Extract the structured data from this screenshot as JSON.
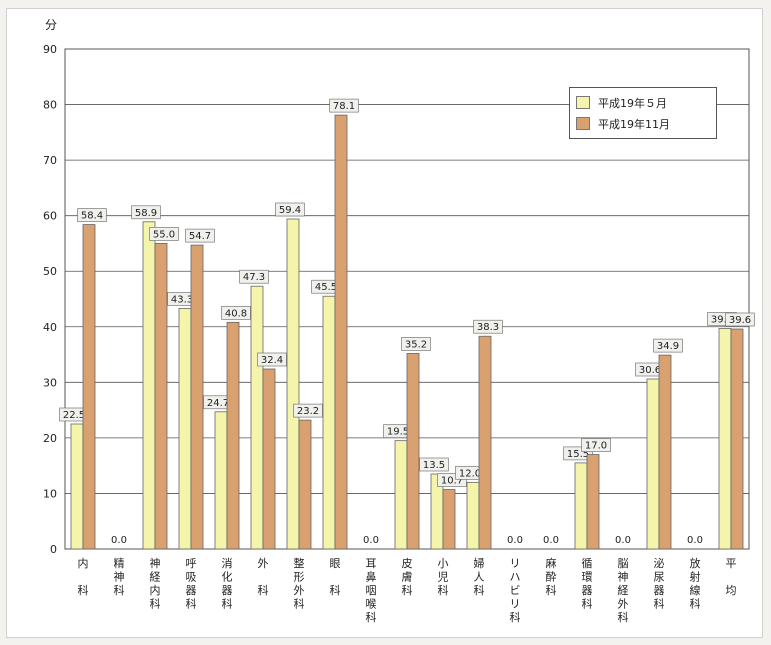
{
  "chart_data": {
    "type": "bar",
    "y_unit": "分",
    "ylim": [
      0,
      90
    ],
    "y_ticks": [
      0,
      10,
      20,
      30,
      40,
      50,
      60,
      70,
      80,
      90
    ],
    "grid": true,
    "legend_position": "top-right",
    "categories": [
      "内　科",
      "精神科",
      "神経内科",
      "呼吸器科",
      "消化器科",
      "外　科",
      "整形外科",
      "眼　科",
      "耳鼻咽喉科",
      "皮膚科",
      "小児科",
      "婦人科",
      "リハビリ科",
      "麻酔科",
      "循環器科",
      "脳神経外科",
      "泌尿器科",
      "放射線科",
      "平　均"
    ],
    "series": [
      {
        "name": "平成19年５月",
        "color": "#f4f4aa",
        "values": [
          22.5,
          0.0,
          58.9,
          43.3,
          24.7,
          47.3,
          59.4,
          45.5,
          0.0,
          19.5,
          13.5,
          12.0,
          0.0,
          0.0,
          15.5,
          0.0,
          30.6,
          0.0,
          39.7
        ]
      },
      {
        "name": "平成19年11月",
        "color": "#d9a070",
        "values": [
          58.4,
          0.0,
          55.0,
          54.7,
          40.8,
          32.4,
          23.2,
          78.1,
          0.0,
          35.2,
          10.7,
          38.3,
          0.0,
          0.0,
          17.0,
          0.0,
          34.9,
          0.0,
          39.6
        ]
      }
    ],
    "zero_labels": [
      "0.0",
      "0.0",
      "0.0",
      "0.0",
      "0.0",
      "0.0",
      "0.0"
    ]
  }
}
